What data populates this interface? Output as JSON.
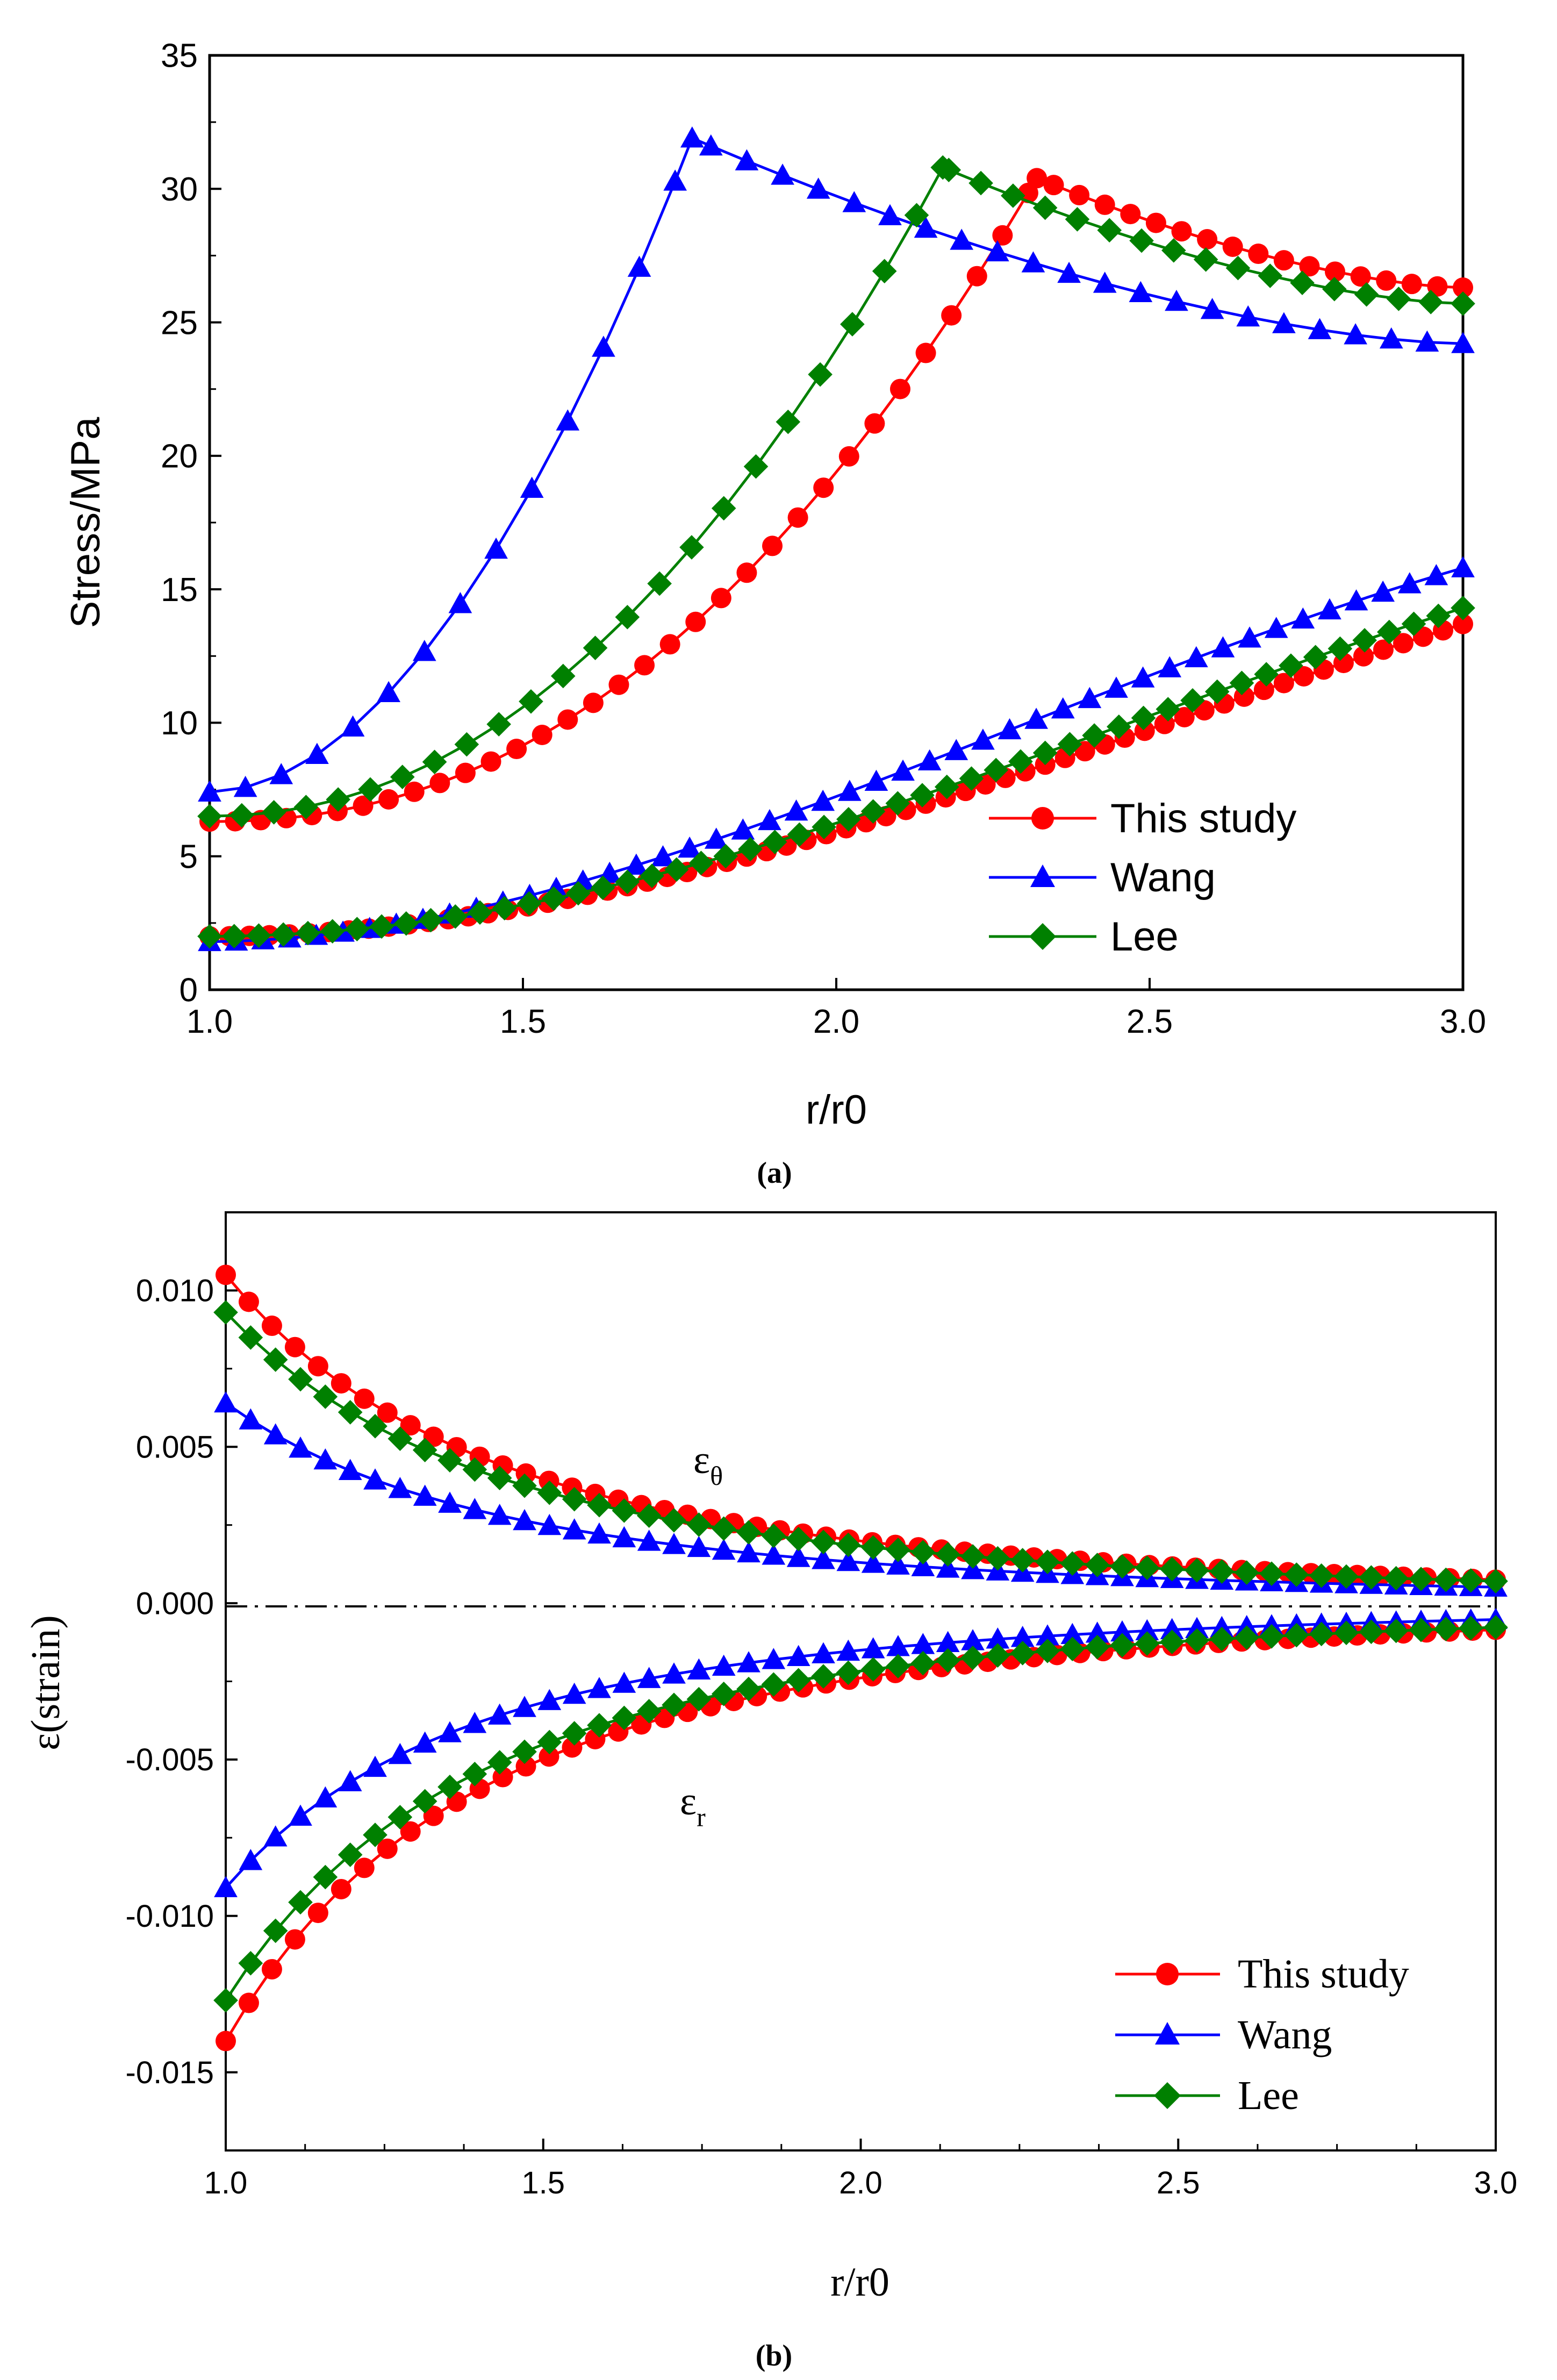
{
  "colors": {
    "this_study": "#ff0000",
    "wang": "#0000ff",
    "lee": "#008000",
    "axis": "#000000",
    "zero_line": "#000000"
  },
  "chart_data": [
    {
      "type": "line",
      "panel_label": "(a)",
      "xlabel": "r/r0",
      "ylabel": "Stress/MPa",
      "xlim": [
        1.0,
        3.0
      ],
      "ylim": [
        0,
        35
      ],
      "xticks": [
        "1.0",
        "1.5",
        "2.0",
        "2.5",
        "3.0"
      ],
      "yticks": [
        "0",
        "5",
        "10",
        "15",
        "20",
        "25",
        "30",
        "35"
      ],
      "legend_placement": "bottom-right",
      "legend": [
        "This study",
        "Wang",
        "Lee"
      ],
      "series": [
        {
          "name": "This study",
          "color_key": "this_study",
          "marker": "circle",
          "curves": [
            {
              "kind": "peak",
              "start_x": 1.0,
              "start_y": 6.3,
              "peak_x": 2.32,
              "peak_y": 30.4,
              "end_x": 3.0,
              "end_y": 26.3,
              "exponent": 2.2,
              "n": 50
            },
            {
              "kind": "rise",
              "start_x": 1.0,
              "start_y": 2.0,
              "end_x": 3.0,
              "end_y": 13.7,
              "exponent": 2.3,
              "n": 64
            }
          ]
        },
        {
          "name": "Wang",
          "color_key": "wang",
          "marker": "triangle",
          "curves": [
            {
              "kind": "peak",
              "start_x": 1.0,
              "start_y": 7.4,
              "peak_x": 1.77,
              "peak_y": 31.9,
              "end_x": 3.0,
              "end_y": 24.2,
              "exponent": 1.9,
              "n": 36
            },
            {
              "kind": "rise",
              "start_x": 1.0,
              "start_y": 1.8,
              "end_x": 3.0,
              "end_y": 15.8,
              "exponent": 1.75,
              "n": 48
            }
          ]
        },
        {
          "name": "Lee",
          "color_key": "lee",
          "marker": "diamond",
          "curves": [
            {
              "kind": "peak",
              "start_x": 1.0,
              "start_y": 6.5,
              "peak_x": 2.17,
              "peak_y": 30.8,
              "end_x": 3.0,
              "end_y": 25.7,
              "exponent": 2.1,
              "n": 40
            },
            {
              "kind": "rise",
              "start_x": 1.0,
              "start_y": 2.0,
              "end_x": 3.0,
              "end_y": 14.3,
              "exponent": 2.2,
              "n": 52
            }
          ]
        }
      ]
    },
    {
      "type": "line",
      "panel_label": "(b)",
      "xlabel": "r/r0",
      "ylabel": "ε(strain)",
      "xlim": [
        1.0,
        3.0
      ],
      "ylim": [
        -0.0175,
        0.0125
      ],
      "xticks": [
        "1.0",
        "1.5",
        "2.0",
        "2.5",
        "3.0"
      ],
      "yticks": [
        "-0.015",
        "-0.010",
        "-0.005",
        "0.000",
        "0.005",
        "0.010"
      ],
      "reference_line": 0.0,
      "annotations": [
        {
          "text": "ε",
          "sub": "θ",
          "x": 1.75,
          "y": 0.004
        },
        {
          "text": "ε",
          "sub": "r",
          "x": 1.75,
          "y": -0.0063
        }
      ],
      "legend_placement": "bottom-right",
      "legend": [
        "This study",
        "Wang",
        "Lee"
      ],
      "series": [
        {
          "name": "This study",
          "color_key": "this_study",
          "marker": "circle",
          "curves": [
            {
              "kind": "inverse",
              "a": 0.0105,
              "p": 2.4,
              "n": 56
            },
            {
              "kind": "inverse",
              "a": -0.014,
              "p": 2.55,
              "n": 56
            }
          ]
        },
        {
          "name": "Wang",
          "color_key": "wang",
          "marker": "triangle",
          "curves": [
            {
              "kind": "inverse",
              "a": 0.0064,
              "p": 2.3,
              "n": 52
            },
            {
              "kind": "inverse",
              "a": -0.0091,
              "p": 2.6,
              "n": 52
            }
          ]
        },
        {
          "name": "Lee",
          "color_key": "lee",
          "marker": "diamond",
          "curves": [
            {
              "kind": "inverse",
              "a": 0.0093,
              "p": 2.35,
              "n": 52
            },
            {
              "kind": "inverse",
              "a": -0.0127,
              "p": 2.55,
              "n": 52
            }
          ]
        }
      ]
    }
  ]
}
